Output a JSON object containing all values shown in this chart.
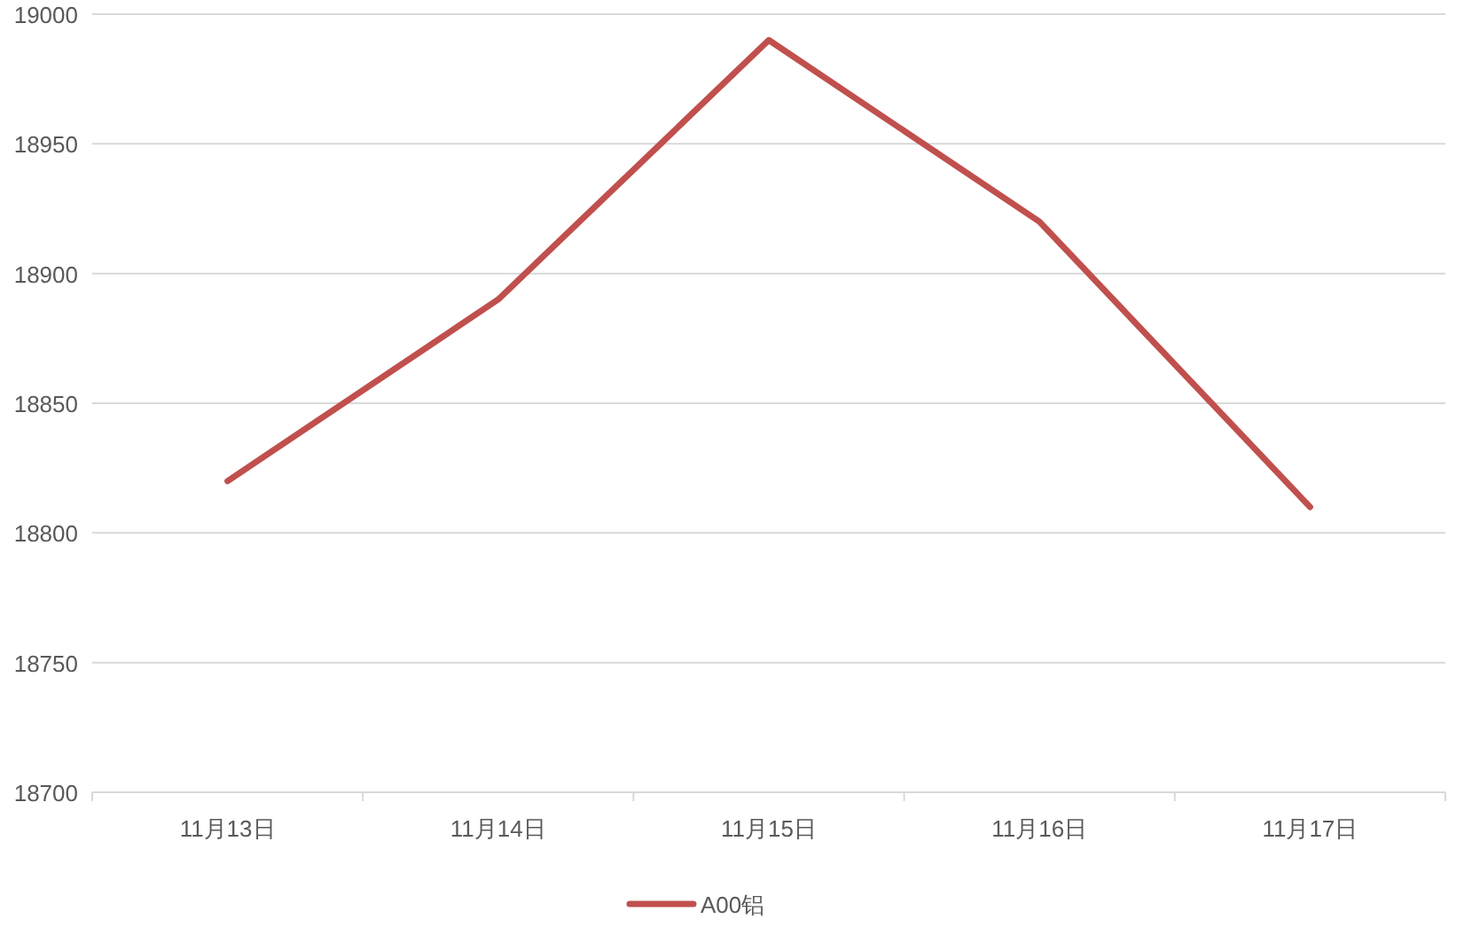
{
  "chart_data": {
    "type": "line",
    "categories": [
      "11月13日",
      "11月14日",
      "11月15日",
      "11月16日",
      "11月17日"
    ],
    "series": [
      {
        "name": "A00铝",
        "color": "#c0504d",
        "values": [
          18820,
          18890,
          18990,
          18920,
          18810
        ]
      }
    ],
    "ylim": [
      18700,
      19000
    ],
    "yticks": [
      18700,
      18750,
      18800,
      18850,
      18900,
      18950,
      19000
    ],
    "grid": "y",
    "legend": "bottom"
  }
}
